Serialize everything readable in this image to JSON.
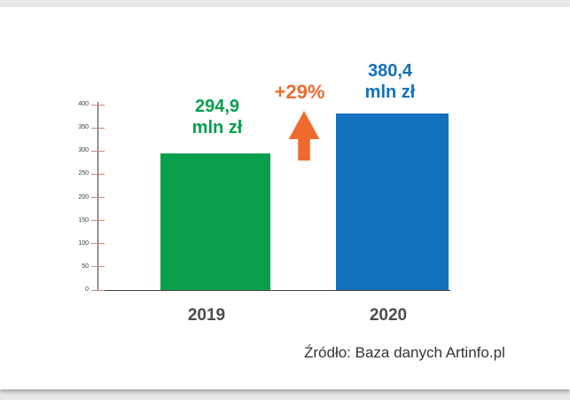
{
  "document": {
    "source_note": "Źródło: Baza danych Artinfo.pl"
  },
  "chart_data": {
    "type": "bar",
    "title": "",
    "xlabel": "",
    "ylabel": "",
    "categories": [
      "2019",
      "2020"
    ],
    "values": [
      294.9,
      380.4
    ],
    "bar_colors": [
      "#089e4c",
      "#1471bd"
    ],
    "value_labels": [
      {
        "line1": "294,9",
        "line2": "mln zł",
        "color": "#089e4c"
      },
      {
        "line1": "380,4",
        "line2": "mln zł",
        "color": "#1471bd"
      }
    ],
    "annotation": {
      "text": "+29%",
      "color": "#ee6b2d",
      "shape": "up-arrow"
    },
    "ylim": [
      0,
      400
    ],
    "yticks": [
      0,
      50,
      100,
      150,
      200,
      250,
      300,
      350,
      400
    ],
    "grid": false,
    "legend": "none",
    "axis_color": "#3f3f3f",
    "tick_color": "#c98a78"
  }
}
